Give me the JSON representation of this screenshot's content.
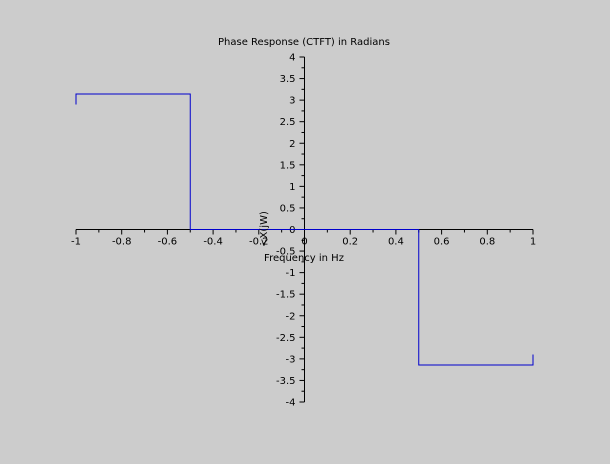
{
  "chart_data": {
    "type": "line",
    "title": "Phase Response (CTFT) in Radians",
    "xlabel": "Frequency in Hz",
    "ylabel": "<X(jW)",
    "xlim": [
      -1,
      1
    ],
    "ylim": [
      -4,
      4
    ],
    "grid": false,
    "x_ticks": [
      -1,
      -0.8,
      -0.6,
      -0.4,
      -0.2,
      0,
      0.2,
      0.4,
      0.6,
      0.8,
      1
    ],
    "x_tick_labels": [
      "-1",
      "-0.8",
      "-0.6",
      "-0.4",
      "-0.2",
      "0",
      "0.2",
      "0.4",
      "0.6",
      "0.8",
      "1"
    ],
    "y_ticks": [
      -4,
      -3.5,
      -3,
      -2.5,
      -2,
      -1.5,
      -1,
      -0.5,
      0,
      0.5,
      1,
      1.5,
      2,
      2.5,
      3,
      3.5,
      4
    ],
    "y_tick_labels": [
      "-4",
      "-3.5",
      "-3",
      "-2.5",
      "-2",
      "-1.5",
      "-1",
      "-0.5",
      "0",
      "0.5",
      "1",
      "1.5",
      "2",
      "2.5",
      "3",
      "3.5",
      "4"
    ],
    "series": [
      {
        "color": "#0000cc",
        "x": [
          -1,
          -1,
          -0.5,
          -0.5,
          -0.5,
          0.5,
          0.5,
          0.5,
          1,
          1
        ],
        "y": [
          2.9,
          3.1416,
          3.1416,
          1.8,
          0,
          0,
          -1.8,
          -3.1416,
          -3.1416,
          -2.9
        ]
      }
    ]
  }
}
